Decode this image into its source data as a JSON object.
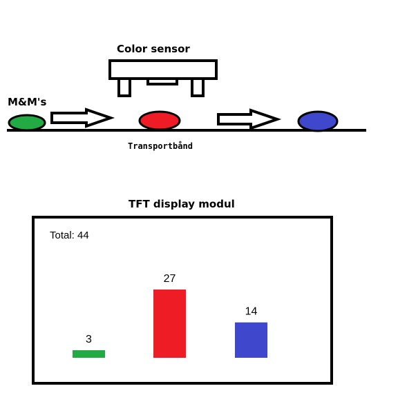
{
  "diagram": {
    "sensor_label": "Color sensor",
    "candies_label": "M&M's",
    "belt_label": "Transportbånd",
    "candies": [
      {
        "name": "green-candy",
        "color": "#22aa44"
      },
      {
        "name": "red-candy",
        "color": "#ee1c24"
      },
      {
        "name": "blue-candy",
        "color": "#3f48cc"
      }
    ]
  },
  "display": {
    "title": "TFT display modul",
    "total_label": "Total: 44"
  },
  "chart_data": {
    "type": "bar",
    "categories": [
      "green",
      "red",
      "blue"
    ],
    "values": [
      3,
      27,
      14
    ],
    "colors": [
      "#22aa44",
      "#ee1c24",
      "#3f48cc"
    ],
    "title": "",
    "xlabel": "",
    "ylabel": ""
  }
}
